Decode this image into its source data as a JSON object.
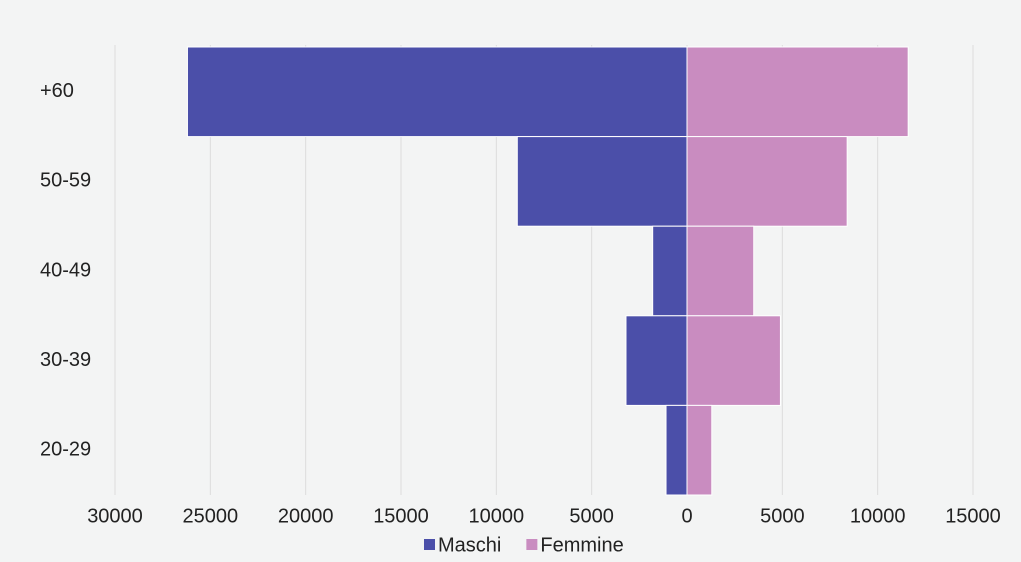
{
  "chart_data": {
    "type": "bar",
    "orientation": "horizontal",
    "stacked": true,
    "categories": [
      "+60",
      "50-59",
      "40-49",
      "30-39",
      "20-29"
    ],
    "series": [
      {
        "name": "Maschi",
        "color": "#4b4fa9",
        "values": [
          -26200,
          -8900,
          -1800,
          -3200,
          -1100
        ]
      },
      {
        "name": "Femmine",
        "color": "#c98cc0",
        "values": [
          11600,
          8400,
          3500,
          4900,
          1300
        ]
      }
    ],
    "xlim": [
      -30000,
      15000
    ],
    "xticks": [
      {
        "value": -30000,
        "label": "30000"
      },
      {
        "value": -25000,
        "label": "25000"
      },
      {
        "value": -20000,
        "label": "20000"
      },
      {
        "value": -15000,
        "label": "15000"
      },
      {
        "value": -10000,
        "label": "10000"
      },
      {
        "value": -5000,
        "label": "5000"
      },
      0,
      5000,
      10000,
      15000
    ],
    "grid": true,
    "legend": "bottom"
  }
}
